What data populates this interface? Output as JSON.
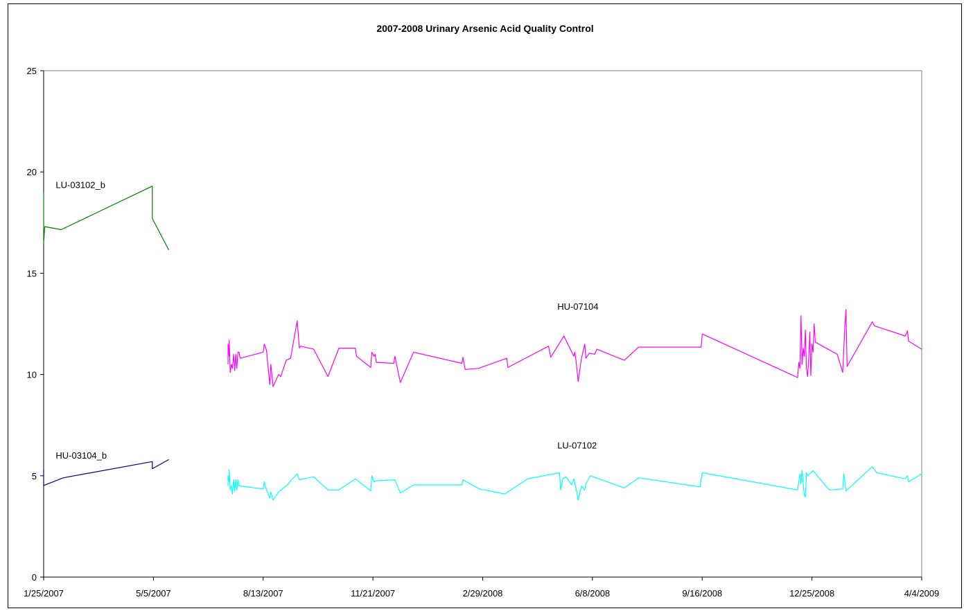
{
  "chart_data": {
    "type": "line",
    "title": "2007-2008 Urinary Arsenic Acid Quality Control",
    "xlabel": "",
    "ylabel": "",
    "x_axis_kind": "date",
    "xlim": [
      "2007-01-25",
      "2009-04-04"
    ],
    "xticks": [
      {
        "date": "2007-01-25",
        "label": "1/25/2007"
      },
      {
        "date": "2007-05-05",
        "label": "5/5/2007"
      },
      {
        "date": "2007-08-13",
        "label": "8/13/2007"
      },
      {
        "date": "2007-11-21",
        "label": "11/21/2007"
      },
      {
        "date": "2008-02-29",
        "label": "2/29/2008"
      },
      {
        "date": "2008-06-08",
        "label": "6/8/2008"
      },
      {
        "date": "2008-09-16",
        "label": "9/16/2008"
      },
      {
        "date": "2008-12-25",
        "label": "12/25/2008"
      },
      {
        "date": "2009-04-04",
        "label": "4/4/2009"
      }
    ],
    "ylim": [
      0,
      25
    ],
    "yticks": [
      0,
      5,
      10,
      15,
      20,
      25
    ],
    "grid": false,
    "legend": "none",
    "series": [
      {
        "name": "LU-03102_b",
        "color": "#008000",
        "label_anchor": {
          "date": "2007-02-05",
          "value": 19.2
        },
        "points": [
          [
            "2007-01-25",
            19.0
          ],
          [
            "2007-01-25",
            16.5
          ],
          [
            "2007-01-26",
            17.3
          ],
          [
            "2007-02-10",
            17.15
          ],
          [
            "2007-05-04",
            19.3
          ],
          [
            "2007-05-04",
            17.7
          ],
          [
            "2007-05-19",
            16.15
          ]
        ]
      },
      {
        "name": "HU-03104_b",
        "color": "#000080",
        "label_anchor": {
          "date": "2007-02-05",
          "value": 5.85
        },
        "points": [
          [
            "2007-01-25",
            5.3
          ],
          [
            "2007-01-25",
            4.52
          ],
          [
            "2007-02-12",
            4.9
          ],
          [
            "2007-05-04",
            5.7
          ],
          [
            "2007-05-04",
            5.35
          ],
          [
            "2007-05-19",
            5.8
          ]
        ]
      },
      {
        "name": "HU-07104",
        "color": "#FF00FF",
        "label_anchor": {
          "date": "2008-05-07",
          "value": 13.2
        },
        "points": [
          [
            "2007-07-12",
            10.5
          ],
          [
            "2007-07-12",
            11.5
          ],
          [
            "2007-07-13",
            10.9
          ],
          [
            "2007-07-13",
            11.7
          ],
          [
            "2007-07-14",
            10.1
          ],
          [
            "2007-07-15",
            10.5
          ],
          [
            "2007-07-16",
            10.3
          ],
          [
            "2007-07-17",
            11.0
          ],
          [
            "2007-07-18",
            10.2
          ],
          [
            "2007-07-19",
            11.0
          ],
          [
            "2007-07-20",
            10.3
          ],
          [
            "2007-07-21",
            11.1
          ],
          [
            "2007-07-22",
            11.1
          ],
          [
            "2007-07-23",
            10.8
          ],
          [
            "2007-08-13",
            11.1
          ],
          [
            "2007-08-14",
            11.5
          ],
          [
            "2007-08-16",
            11.2
          ],
          [
            "2007-08-19",
            9.5
          ],
          [
            "2007-08-20",
            10.5
          ],
          [
            "2007-08-22",
            9.4
          ],
          [
            "2007-08-27",
            10.0
          ],
          [
            "2007-08-29",
            9.9
          ],
          [
            "2007-09-03",
            10.7
          ],
          [
            "2007-09-07",
            10.8
          ],
          [
            "2007-09-13",
            12.65
          ],
          [
            "2007-09-15",
            11.3
          ],
          [
            "2007-09-16",
            11.4
          ],
          [
            "2007-09-28",
            11.25
          ],
          [
            "2007-10-11",
            9.9
          ],
          [
            "2007-10-21",
            11.3
          ],
          [
            "2007-11-05",
            11.3
          ],
          [
            "2007-11-06",
            10.9
          ],
          [
            "2007-11-19",
            10.35
          ],
          [
            "2007-11-20",
            11.1
          ],
          [
            "2007-11-22",
            10.9
          ],
          [
            "2007-11-23",
            11.0
          ],
          [
            "2007-11-24",
            10.6
          ],
          [
            "2007-12-10",
            10.55
          ],
          [
            "2007-12-11",
            10.9
          ],
          [
            "2007-12-16",
            9.6
          ],
          [
            "2007-12-28",
            11.1
          ],
          [
            "2008-02-10",
            10.55
          ],
          [
            "2008-02-11",
            10.85
          ],
          [
            "2008-02-13",
            10.25
          ],
          [
            "2008-02-25",
            10.3
          ],
          [
            "2008-03-22",
            10.8
          ],
          [
            "2008-03-23",
            10.35
          ],
          [
            "2008-04-29",
            11.4
          ],
          [
            "2008-05-01",
            10.85
          ],
          [
            "2008-05-13",
            11.9
          ],
          [
            "2008-05-22",
            10.9
          ],
          [
            "2008-05-23",
            11.1
          ],
          [
            "2008-05-24",
            10.7
          ],
          [
            "2008-05-26",
            9.65
          ],
          [
            "2008-05-29",
            10.8
          ],
          [
            "2008-06-01",
            11.5
          ],
          [
            "2008-06-02",
            10.8
          ],
          [
            "2008-06-05",
            11.05
          ],
          [
            "2008-06-10",
            11.0
          ],
          [
            "2008-06-12",
            11.25
          ],
          [
            "2008-07-07",
            10.7
          ],
          [
            "2008-07-20",
            11.35
          ],
          [
            "2008-09-15",
            11.35
          ],
          [
            "2008-09-16",
            12.0
          ],
          [
            "2008-12-12",
            9.85
          ],
          [
            "2008-12-13",
            10.6
          ],
          [
            "2008-12-14",
            10.3
          ],
          [
            "2008-12-15",
            12.9
          ],
          [
            "2008-12-16",
            10.5
          ],
          [
            "2008-12-17",
            11.3
          ],
          [
            "2008-12-18",
            10.9
          ],
          [
            "2008-12-19",
            12.2
          ],
          [
            "2008-12-20",
            10.3
          ],
          [
            "2008-12-21",
            9.9
          ],
          [
            "2008-12-22",
            10.8
          ],
          [
            "2008-12-23",
            12.1
          ],
          [
            "2008-12-24",
            9.95
          ],
          [
            "2008-12-25",
            11.5
          ],
          [
            "2008-12-26",
            11.1
          ],
          [
            "2008-12-27",
            12.5
          ],
          [
            "2008-12-28",
            11.6
          ],
          [
            "2009-01-17",
            11.0
          ],
          [
            "2009-01-22",
            10.1
          ],
          [
            "2009-01-24",
            12.4
          ],
          [
            "2009-01-25",
            13.2
          ],
          [
            "2009-01-26",
            10.4
          ],
          [
            "2009-02-18",
            12.6
          ],
          [
            "2009-02-20",
            12.4
          ],
          [
            "2009-03-20",
            11.9
          ],
          [
            "2009-03-22",
            12.15
          ],
          [
            "2009-03-23",
            11.65
          ],
          [
            "2009-04-04",
            11.25
          ]
        ]
      },
      {
        "name": "LU-07102",
        "color": "#00FFFF",
        "label_anchor": {
          "date": "2008-05-07",
          "value": 6.35
        },
        "points": [
          [
            "2007-07-12",
            4.5
          ],
          [
            "2007-07-12",
            5.0
          ],
          [
            "2007-07-13",
            4.7
          ],
          [
            "2007-07-13",
            5.3
          ],
          [
            "2007-07-14",
            4.3
          ],
          [
            "2007-07-15",
            4.5
          ],
          [
            "2007-07-16",
            4.1
          ],
          [
            "2007-07-17",
            4.8
          ],
          [
            "2007-07-18",
            4.25
          ],
          [
            "2007-07-19",
            4.8
          ],
          [
            "2007-07-20",
            4.3
          ],
          [
            "2007-07-21",
            4.8
          ],
          [
            "2007-07-22",
            4.5
          ],
          [
            "2007-08-13",
            4.35
          ],
          [
            "2007-08-14",
            4.7
          ],
          [
            "2007-08-16",
            4.3
          ],
          [
            "2007-08-19",
            3.9
          ],
          [
            "2007-08-20",
            4.2
          ],
          [
            "2007-08-22",
            3.8
          ],
          [
            "2007-08-27",
            4.2
          ],
          [
            "2007-09-05",
            4.6
          ],
          [
            "2007-09-07",
            4.75
          ],
          [
            "2007-09-13",
            5.1
          ],
          [
            "2007-09-15",
            4.8
          ],
          [
            "2007-09-28",
            4.95
          ],
          [
            "2007-10-11",
            4.3
          ],
          [
            "2007-10-21",
            4.3
          ],
          [
            "2007-11-05",
            4.85
          ],
          [
            "2007-11-19",
            4.25
          ],
          [
            "2007-11-20",
            5.0
          ],
          [
            "2007-11-22",
            4.7
          ],
          [
            "2007-11-24",
            4.75
          ],
          [
            "2007-12-11",
            4.8
          ],
          [
            "2007-12-16",
            4.15
          ],
          [
            "2007-12-28",
            4.55
          ],
          [
            "2008-02-10",
            4.55
          ],
          [
            "2008-02-11",
            4.8
          ],
          [
            "2008-02-26",
            4.35
          ],
          [
            "2008-03-20",
            4.1
          ],
          [
            "2008-04-10",
            4.85
          ],
          [
            "2008-05-09",
            5.15
          ],
          [
            "2008-05-10",
            4.3
          ],
          [
            "2008-05-12",
            4.85
          ],
          [
            "2008-05-15",
            4.95
          ],
          [
            "2008-05-20",
            4.55
          ],
          [
            "2008-05-22",
            4.85
          ],
          [
            "2008-05-24",
            4.4
          ],
          [
            "2008-05-26",
            3.8
          ],
          [
            "2008-05-29",
            4.5
          ],
          [
            "2008-06-01",
            4.3
          ],
          [
            "2008-06-02",
            4.6
          ],
          [
            "2008-06-06",
            5.0
          ],
          [
            "2008-07-07",
            4.4
          ],
          [
            "2008-07-20",
            4.9
          ],
          [
            "2008-09-14",
            4.45
          ],
          [
            "2008-09-16",
            5.15
          ],
          [
            "2008-12-12",
            4.3
          ],
          [
            "2008-12-14",
            5.1
          ],
          [
            "2008-12-15",
            4.6
          ],
          [
            "2008-12-16",
            5.25
          ],
          [
            "2008-12-18",
            4.05
          ],
          [
            "2008-12-19",
            3.95
          ],
          [
            "2008-12-20",
            5.15
          ],
          [
            "2008-12-21",
            5.0
          ],
          [
            "2008-12-26",
            5.25
          ],
          [
            "2009-01-05",
            4.6
          ],
          [
            "2009-01-10",
            4.3
          ],
          [
            "2009-01-22",
            4.35
          ],
          [
            "2009-01-23",
            5.1
          ],
          [
            "2009-01-25",
            4.25
          ],
          [
            "2009-02-18",
            5.45
          ],
          [
            "2009-02-22",
            5.15
          ],
          [
            "2009-03-20",
            4.85
          ],
          [
            "2009-03-22",
            5.0
          ],
          [
            "2009-03-23",
            4.7
          ],
          [
            "2009-04-04",
            5.1
          ]
        ]
      }
    ]
  }
}
